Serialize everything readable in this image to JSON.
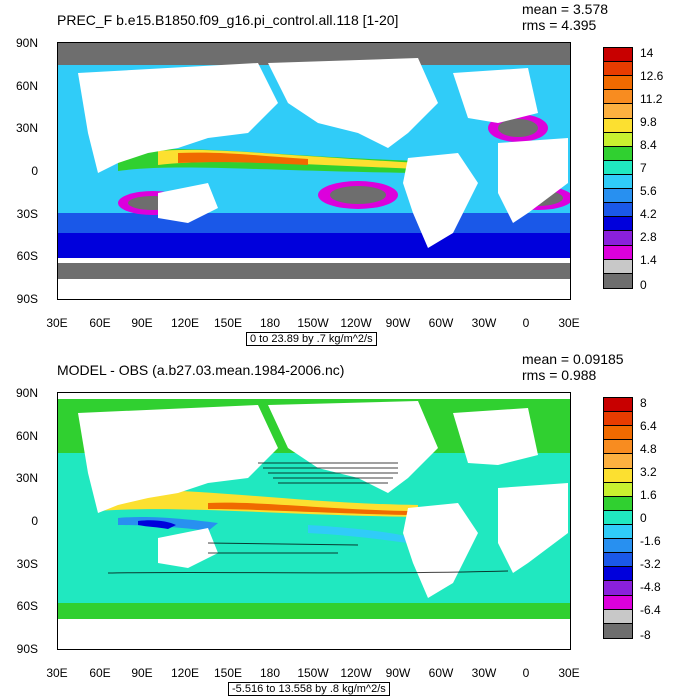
{
  "panels": [
    {
      "title": "PREC_F b.e15.B1850.f09_g16.pi_control.all.118 [1-20]",
      "mean": "mean = 3.578",
      "rms": "rms = 4.395",
      "range_label": "0 to 23.89 by .7 kg/m^2/s",
      "colorbar_labels": [
        "14",
        "12.6",
        "11.2",
        "9.8",
        "8.4",
        "7",
        "5.6",
        "4.2",
        "2.8",
        "1.4",
        "0"
      ],
      "colors": [
        "#c80000",
        "#e83c00",
        "#f06a00",
        "#f88c20",
        "#fcb040",
        "#fce030",
        "#c8f030",
        "#30d030",
        "#20e8c0",
        "#30ccf8",
        "#2890f0",
        "#1a58e8",
        "#0000dc",
        "#8a20dc",
        "#dc00dc",
        "#c8c8c8",
        "#6e6e6e"
      ]
    },
    {
      "title": "MODEL - OBS (a.b27.03.mean.1984-2006.nc)",
      "mean": "mean = 0.09185",
      "rms": "rms = 0.988",
      "range_label": "-5.516 to 13.558 by .8 kg/m^2/s",
      "colorbar_labels": [
        "8",
        "6.4",
        "4.8",
        "3.2",
        "1.6",
        "0",
        "-1.6",
        "-3.2",
        "-4.8",
        "-6.4",
        "-8"
      ],
      "colors": [
        "#c80000",
        "#e83c00",
        "#f06a00",
        "#f88c20",
        "#fcb040",
        "#fce030",
        "#c8f030",
        "#30d030",
        "#20e8c0",
        "#30ccf8",
        "#2890f0",
        "#1a58e8",
        "#0000dc",
        "#8a20dc",
        "#dc00dc",
        "#c8c8c8",
        "#6e6e6e"
      ]
    }
  ],
  "lat_labels": [
    "90N",
    "60N",
    "30N",
    "0",
    "30S",
    "60S",
    "90S"
  ],
  "lon_labels": [
    "30E",
    "60E",
    "90E",
    "120E",
    "150E",
    "180",
    "150W",
    "120W",
    "90W",
    "60W",
    "30W",
    "0",
    "30E"
  ]
}
